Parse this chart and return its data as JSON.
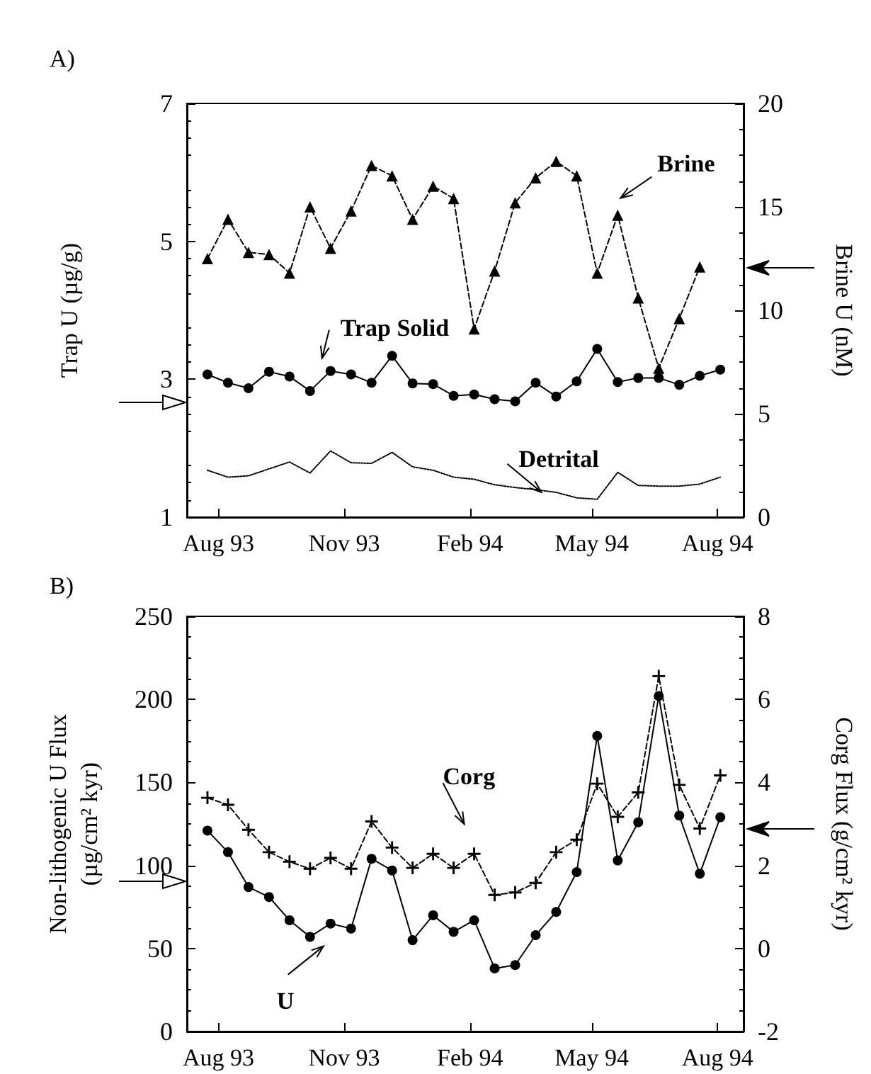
{
  "chart_data": [
    {
      "type": "line",
      "title": "A)",
      "ylabel": "Trap U (µg/g)",
      "y2label": "Brine U (nM)",
      "x": [
        "1993-07-24",
        "1993-08-08",
        "1993-08-23",
        "1993-09-07",
        "1993-09-22",
        "1993-10-07",
        "1993-10-22",
        "1993-11-06",
        "1993-11-21",
        "1993-12-06",
        "1993-12-21",
        "1994-01-05",
        "1994-01-20",
        "1994-02-04",
        "1994-02-19",
        "1994-03-06",
        "1994-03-21",
        "1994-04-05",
        "1994-04-20",
        "1994-05-05",
        "1994-05-20",
        "1994-06-04",
        "1994-06-19",
        "1994-07-04",
        "1994-07-19",
        "1994-08-03"
      ],
      "xlim": [
        "1993-07-09",
        "1994-08-20"
      ],
      "xticks": [
        {
          "value": "1993-08-01",
          "label": "Aug 93"
        },
        {
          "value": "1993-11-01",
          "label": "Nov 93"
        },
        {
          "value": "1994-02-01",
          "label": "Feb 94"
        },
        {
          "value": "1994-05-01",
          "label": "May 94"
        },
        {
          "value": "1994-08-01",
          "label": "Aug 94"
        }
      ],
      "ylim": [
        1,
        7
      ],
      "yticks": [
        1,
        3,
        5,
        7
      ],
      "y2lim": [
        0,
        20
      ],
      "y2ticks": [
        0,
        5,
        10,
        15,
        20
      ],
      "series": [
        {
          "name": "Brine",
          "color": "#000000",
          "axis": "y2",
          "marker": "triangle",
          "line_style": "dashed",
          "values": [
            12.5,
            14.4,
            12.8,
            12.7,
            11.8,
            15.0,
            13.0,
            14.8,
            17.0,
            16.5,
            14.4,
            16.0,
            15.4,
            9.1,
            11.9,
            15.2,
            16.4,
            17.2,
            16.5,
            11.8,
            14.6,
            10.6,
            7.2,
            9.6,
            12.1,
            null
          ]
        },
        {
          "name": "Trap Solid",
          "color": "#000000",
          "marker": "circle",
          "line_style": "solid",
          "values": [
            3.07,
            2.95,
            2.87,
            3.11,
            3.04,
            2.83,
            3.12,
            3.07,
            2.95,
            3.34,
            2.94,
            2.93,
            2.76,
            2.78,
            2.71,
            2.68,
            2.95,
            2.75,
            2.97,
            3.44,
            2.96,
            3.02,
            3.02,
            2.92,
            3.05,
            3.14
          ]
        },
        {
          "name": "Detrital",
          "color": "#000000",
          "marker": "none",
          "line_style": "dotted",
          "values": [
            1.68,
            1.58,
            1.6,
            1.7,
            1.8,
            1.64,
            1.96,
            1.79,
            1.78,
            1.94,
            1.73,
            1.68,
            1.58,
            1.55,
            1.47,
            1.43,
            1.4,
            1.36,
            1.28,
            1.26,
            1.65,
            1.46,
            1.45,
            1.45,
            1.48,
            1.58
          ]
        }
      ]
    },
    {
      "type": "line",
      "title": "B)",
      "ylabel": "Non-lithogenic U Flux\n(µg/cm² kyr)",
      "y2label": "Corg Flux (g/cm² kyr)",
      "x": [
        "1993-07-24",
        "1993-08-08",
        "1993-08-23",
        "1993-09-07",
        "1993-09-22",
        "1993-10-07",
        "1993-10-22",
        "1993-11-06",
        "1993-11-21",
        "1993-12-06",
        "1993-12-21",
        "1994-01-05",
        "1994-01-20",
        "1994-02-04",
        "1994-02-19",
        "1994-03-06",
        "1994-03-21",
        "1994-04-05",
        "1994-04-20",
        "1994-05-05",
        "1994-05-20",
        "1994-06-04",
        "1994-06-19",
        "1994-07-04",
        "1994-07-19",
        "1994-08-03"
      ],
      "xlim": [
        "1993-07-09",
        "1994-08-20"
      ],
      "xticks": [
        {
          "value": "1993-08-01",
          "label": "Aug 93"
        },
        {
          "value": "1993-11-01",
          "label": "Nov 93"
        },
        {
          "value": "1994-02-01",
          "label": "Feb 94"
        },
        {
          "value": "1994-05-01",
          "label": "May 94"
        },
        {
          "value": "1994-08-01",
          "label": "Aug 94"
        }
      ],
      "ylim": [
        0,
        250
      ],
      "yticks": [
        0,
        50,
        100,
        150,
        200,
        250
      ],
      "y2lim": [
        -2,
        8
      ],
      "y2ticks": [
        -2,
        0,
        2,
        4,
        6,
        8
      ],
      "series": [
        {
          "name": "Corg",
          "color": "#000000",
          "axis": "y2",
          "marker": "cross",
          "line_style": "dashed",
          "values": [
            3.63,
            3.46,
            2.86,
            2.32,
            2.09,
            1.92,
            2.18,
            1.92,
            3.06,
            2.43,
            1.94,
            2.28,
            1.94,
            2.28,
            1.29,
            1.35,
            1.58,
            2.32,
            2.62,
            3.97,
            3.17,
            3.76,
            6.56,
            3.94,
            2.89,
            4.17
          ]
        },
        {
          "name": "U",
          "color": "#000000",
          "marker": "circle",
          "line_style": "solid",
          "values": [
            121,
            108,
            87,
            81,
            67,
            57,
            65,
            62,
            104,
            97,
            55,
            70,
            60,
            67,
            38,
            40,
            58,
            72,
            96,
            178,
            103,
            126,
            202,
            130,
            95,
            129
          ]
        }
      ]
    }
  ]
}
